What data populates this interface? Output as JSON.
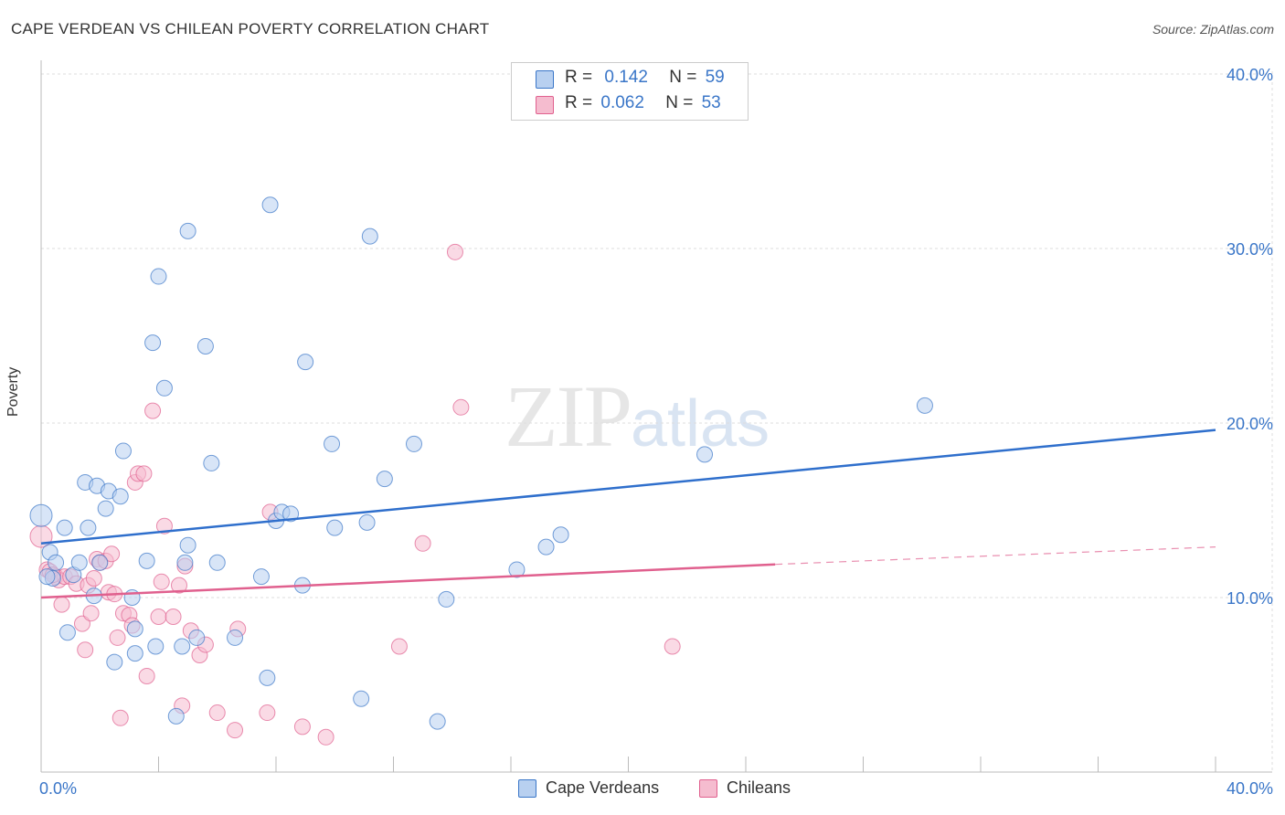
{
  "title": "CAPE VERDEAN VS CHILEAN POVERTY CORRELATION CHART",
  "source": "Source: ZipAtlas.com",
  "watermark": {
    "zip": "ZIP",
    "atlas": "atlas"
  },
  "colors": {
    "blue": "#3a76c8",
    "blue_fill": "#b8d0f0",
    "pink": "#e0608e",
    "pink_fill": "#f5bccf",
    "grid": "#dddddd"
  },
  "legend": {
    "rows": [
      {
        "r_label": "R =",
        "r_value": "0.142",
        "n_label": "N =",
        "n_value": "59"
      },
      {
        "r_label": "R =",
        "r_value": "0.062",
        "n_label": "N =",
        "n_value": "53"
      }
    ]
  },
  "bottom_legend": [
    "Cape Verdeans",
    "Chileans"
  ],
  "chart_data": {
    "type": "scatter",
    "title": "CAPE VERDEAN VS CHILEAN POVERTY CORRELATION CHART",
    "xlabel": "",
    "ylabel": "Poverty",
    "xlim": [
      0,
      40
    ],
    "ylim": [
      0,
      40
    ],
    "x_tick_labels": [
      "0.0%",
      "40.0%"
    ],
    "y_tick_labels": [
      "10.0%",
      "20.0%",
      "30.0%",
      "40.0%"
    ],
    "y_ticks": [
      10,
      20,
      30,
      40
    ],
    "series": [
      {
        "name": "Cape Verdeans",
        "color": "#3a76c8",
        "r": 0.142,
        "n": 59,
        "trend": {
          "x0": 0,
          "y0": 13.1,
          "x1": 40,
          "y1": 19.6
        },
        "points": [
          [
            0.0,
            14.7
          ],
          [
            0.3,
            12.6
          ],
          [
            0.4,
            11.1
          ],
          [
            0.5,
            12.0
          ],
          [
            0.8,
            14.0
          ],
          [
            0.9,
            8.0
          ],
          [
            1.1,
            11.3
          ],
          [
            1.3,
            12.0
          ],
          [
            1.5,
            16.6
          ],
          [
            1.6,
            14.0
          ],
          [
            1.8,
            10.1
          ],
          [
            1.9,
            16.4
          ],
          [
            2.0,
            12.0
          ],
          [
            2.2,
            15.1
          ],
          [
            2.3,
            16.1
          ],
          [
            2.5,
            6.3
          ],
          [
            2.7,
            15.8
          ],
          [
            2.8,
            18.4
          ],
          [
            3.1,
            10.0
          ],
          [
            3.2,
            6.8
          ],
          [
            3.2,
            8.2
          ],
          [
            3.6,
            12.1
          ],
          [
            3.8,
            24.6
          ],
          [
            3.9,
            7.2
          ],
          [
            4.0,
            28.4
          ],
          [
            4.2,
            22.0
          ],
          [
            4.6,
            3.2
          ],
          [
            4.8,
            7.2
          ],
          [
            4.9,
            12.0
          ],
          [
            5.0,
            13.0
          ],
          [
            5.0,
            31.0
          ],
          [
            5.3,
            7.7
          ],
          [
            5.6,
            24.4
          ],
          [
            5.8,
            17.7
          ],
          [
            6.0,
            12.0
          ],
          [
            6.6,
            7.7
          ],
          [
            7.5,
            11.2
          ],
          [
            7.7,
            5.4
          ],
          [
            7.8,
            32.5
          ],
          [
            8.0,
            14.4
          ],
          [
            8.2,
            14.9
          ],
          [
            8.5,
            14.8
          ],
          [
            8.9,
            10.7
          ],
          [
            9.0,
            23.5
          ],
          [
            9.9,
            18.8
          ],
          [
            10.0,
            14.0
          ],
          [
            10.9,
            4.2
          ],
          [
            11.2,
            30.7
          ],
          [
            11.1,
            14.3
          ],
          [
            11.7,
            16.8
          ],
          [
            12.7,
            18.8
          ],
          [
            13.5,
            2.9
          ],
          [
            13.8,
            9.9
          ],
          [
            16.2,
            11.6
          ],
          [
            17.2,
            12.9
          ],
          [
            17.7,
            13.6
          ],
          [
            22.6,
            18.2
          ],
          [
            30.1,
            21.0
          ],
          [
            0.2,
            11.2
          ]
        ]
      },
      {
        "name": "Chileans",
        "color": "#e0608e",
        "r": 0.062,
        "n": 53,
        "trend": {
          "x0": 0,
          "y0": 10.0,
          "x1": 25,
          "y1": 11.9
        },
        "trend_dashed": {
          "x0": 25,
          "y0": 11.9,
          "x1": 40,
          "y1": 12.9
        },
        "points": [
          [
            0.0,
            13.5
          ],
          [
            0.2,
            11.6
          ],
          [
            0.3,
            11.5
          ],
          [
            0.5,
            11.2
          ],
          [
            0.6,
            11.0
          ],
          [
            0.7,
            9.6
          ],
          [
            0.8,
            11.2
          ],
          [
            1.0,
            11.2
          ],
          [
            1.2,
            10.8
          ],
          [
            1.4,
            8.5
          ],
          [
            1.5,
            7.0
          ],
          [
            1.6,
            10.7
          ],
          [
            1.7,
            9.1
          ],
          [
            1.8,
            11.1
          ],
          [
            1.9,
            12.2
          ],
          [
            2.0,
            12.0
          ],
          [
            2.2,
            12.1
          ],
          [
            2.3,
            10.3
          ],
          [
            2.4,
            12.5
          ],
          [
            2.5,
            10.2
          ],
          [
            2.6,
            7.7
          ],
          [
            2.7,
            3.1
          ],
          [
            2.8,
            9.1
          ],
          [
            3.0,
            9.0
          ],
          [
            3.1,
            8.4
          ],
          [
            3.2,
            16.6
          ],
          [
            3.3,
            17.1
          ],
          [
            3.5,
            17.1
          ],
          [
            3.6,
            5.5
          ],
          [
            3.8,
            20.7
          ],
          [
            4.0,
            8.9
          ],
          [
            4.1,
            10.9
          ],
          [
            4.2,
            14.1
          ],
          [
            4.5,
            8.9
          ],
          [
            4.7,
            10.7
          ],
          [
            4.8,
            3.8
          ],
          [
            4.9,
            11.8
          ],
          [
            5.1,
            8.1
          ],
          [
            5.4,
            6.7
          ],
          [
            5.6,
            7.3
          ],
          [
            6.0,
            3.4
          ],
          [
            6.6,
            2.4
          ],
          [
            6.7,
            8.2
          ],
          [
            7.7,
            3.4
          ],
          [
            7.8,
            14.9
          ],
          [
            8.9,
            2.6
          ],
          [
            9.7,
            2.0
          ],
          [
            12.2,
            7.2
          ],
          [
            13.0,
            13.1
          ],
          [
            14.1,
            29.8
          ],
          [
            14.3,
            20.9
          ],
          [
            21.5,
            7.2
          ],
          [
            0.4,
            11.3
          ]
        ]
      }
    ]
  }
}
